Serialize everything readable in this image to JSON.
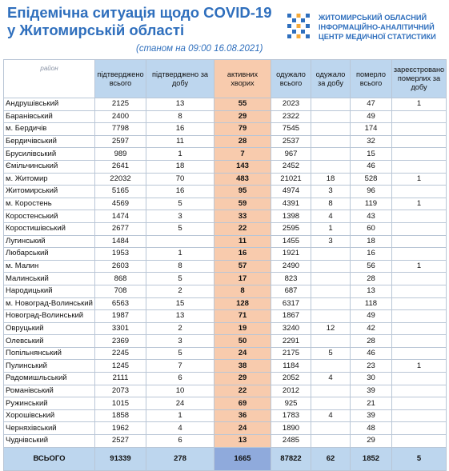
{
  "header": {
    "title_line1": "Епідемічна ситуація щодо COVID-19",
    "title_line2": "у Житомирській області",
    "subtitle": "(станом на 09:00 16.08.2021)",
    "org_line1": "ЖИТОМИРСЬКИЙ ОБЛАСНИЙ",
    "org_line2": "ІНФОРМАЦІЙНО-АНАЛІТИЧНИЙ",
    "org_line3": "ЦЕНТР МЕДИЧНОЇ СТАТИСТИКИ",
    "logo_icon": "cross-dots-logo-icon",
    "accent_color": "#2f6fbd"
  },
  "table": {
    "columns": [
      "район",
      "підтверджено всього",
      "підтверджено за добу",
      "активних хворих",
      "одужало всього",
      "одужало за добу",
      "померло всього",
      "зареєстровано померлих за добу"
    ],
    "rows": [
      [
        "Андрушівський",
        "2125",
        "13",
        "55",
        "2023",
        "",
        "47",
        "1"
      ],
      [
        "Баранівський",
        "2400",
        "8",
        "29",
        "2322",
        "",
        "49",
        ""
      ],
      [
        "м. Бердичів",
        "7798",
        "16",
        "79",
        "7545",
        "",
        "174",
        ""
      ],
      [
        "Бердичівський",
        "2597",
        "11",
        "28",
        "2537",
        "",
        "32",
        ""
      ],
      [
        "Брусилівський",
        "989",
        "1",
        "7",
        "967",
        "",
        "15",
        ""
      ],
      [
        "Ємільчинський",
        "2641",
        "18",
        "143",
        "2452",
        "",
        "46",
        ""
      ],
      [
        "м. Житомир",
        "22032",
        "70",
        "483",
        "21021",
        "18",
        "528",
        "1"
      ],
      [
        "Житомирський",
        "5165",
        "16",
        "95",
        "4974",
        "3",
        "96",
        ""
      ],
      [
        "м. Коростень",
        "4569",
        "5",
        "59",
        "4391",
        "8",
        "119",
        "1"
      ],
      [
        "Коростенський",
        "1474",
        "3",
        "33",
        "1398",
        "4",
        "43",
        ""
      ],
      [
        "Коростишівський",
        "2677",
        "5",
        "22",
        "2595",
        "1",
        "60",
        ""
      ],
      [
        "Лугинський",
        "1484",
        "",
        "11",
        "1455",
        "3",
        "18",
        ""
      ],
      [
        "Любарський",
        "1953",
        "1",
        "16",
        "1921",
        "",
        "16",
        ""
      ],
      [
        "м. Малин",
        "2603",
        "8",
        "57",
        "2490",
        "",
        "56",
        "1"
      ],
      [
        "Малинський",
        "868",
        "5",
        "17",
        "823",
        "",
        "28",
        ""
      ],
      [
        "Народицький",
        "708",
        "2",
        "8",
        "687",
        "",
        "13",
        ""
      ],
      [
        "м. Новоград-Волинський",
        "6563",
        "15",
        "128",
        "6317",
        "",
        "118",
        ""
      ],
      [
        "Новоград-Волинський",
        "1987",
        "13",
        "71",
        "1867",
        "",
        "49",
        ""
      ],
      [
        "Овруцький",
        "3301",
        "2",
        "19",
        "3240",
        "12",
        "42",
        ""
      ],
      [
        "Олевський",
        "2369",
        "3",
        "50",
        "2291",
        "",
        "28",
        ""
      ],
      [
        "Попільнянський",
        "2245",
        "5",
        "24",
        "2175",
        "5",
        "46",
        ""
      ],
      [
        "Пулинський",
        "1245",
        "7",
        "38",
        "1184",
        "",
        "23",
        "1"
      ],
      [
        "Радомишльський",
        "2111",
        "6",
        "29",
        "2052",
        "4",
        "30",
        ""
      ],
      [
        "Романівський",
        "2073",
        "10",
        "22",
        "2012",
        "",
        "39",
        ""
      ],
      [
        "Ружинський",
        "1015",
        "24",
        "69",
        "925",
        "",
        "21",
        ""
      ],
      [
        "Хорошівський",
        "1858",
        "1",
        "36",
        "1783",
        "4",
        "39",
        ""
      ],
      [
        "Черняхівський",
        "1962",
        "4",
        "24",
        "1890",
        "",
        "48",
        ""
      ],
      [
        "Чуднівський",
        "2527",
        "6",
        "13",
        "2485",
        "",
        "29",
        ""
      ]
    ],
    "total": [
      "ВСЬОГО",
      "91339",
      "278",
      "1665",
      "87822",
      "62",
      "1852",
      "5"
    ],
    "header_color": "#bdd6ee",
    "active_color": "#f8cbad",
    "active_total_color": "#8faadc"
  }
}
